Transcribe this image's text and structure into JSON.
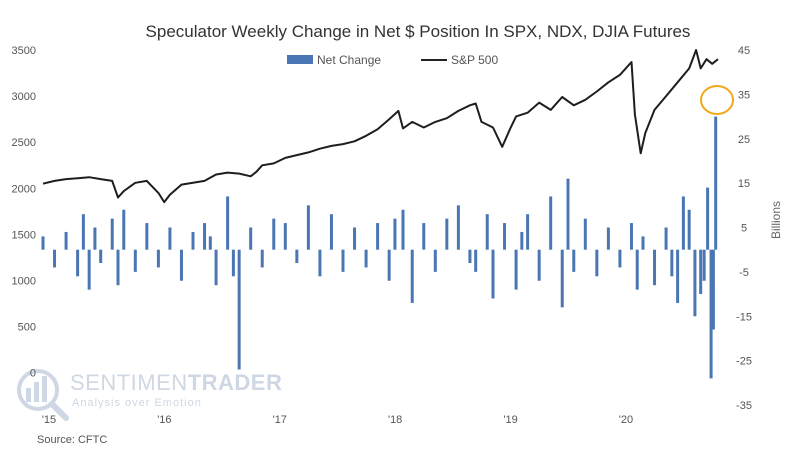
{
  "chart_data": {
    "type": "bar+line",
    "title": "Speculator Weekly Change in Net $ Position In SPX, NDX, DJIA Futures",
    "source": "Source: CFTC",
    "watermark": {
      "name_part1": "SENTIMEN",
      "name_part2": "TRADER",
      "tagline": "Analysis over Emotion"
    },
    "legend": {
      "bars": "Net Change",
      "line": "S&P 500",
      "position": "top-center"
    },
    "left_axis": {
      "series": "S&P 500",
      "range": [
        -350,
        3500
      ],
      "ticks": [
        "0",
        "500",
        "1000",
        "1500",
        "2000",
        "2500",
        "3000",
        "3500"
      ]
    },
    "right_axis": {
      "series": "Net Change",
      "label": "Billions",
      "range": [
        -35,
        45
      ],
      "ticks": [
        "45",
        "35",
        "25",
        "15",
        "5",
        "-5",
        "-15",
        "-25",
        "-35"
      ]
    },
    "x_axis": {
      "range": [
        2015.0,
        2020.85
      ],
      "ticks": [
        {
          "label": "'15",
          "year": 2015
        },
        {
          "label": "'16",
          "year": 2016
        },
        {
          "label": "'17",
          "year": 2017
        },
        {
          "label": "'18",
          "year": 2018
        },
        {
          "label": "'19",
          "year": 2019
        },
        {
          "label": "'20",
          "year": 2020
        }
      ]
    },
    "sp500": {
      "x": [
        2015.0,
        2015.1,
        2015.2,
        2015.3,
        2015.4,
        2015.5,
        2015.6,
        2015.65,
        2015.7,
        2015.8,
        2015.9,
        2016.0,
        2016.05,
        2016.1,
        2016.2,
        2016.3,
        2016.4,
        2016.5,
        2016.6,
        2016.7,
        2016.8,
        2016.85,
        2016.9,
        2017.0,
        2017.1,
        2017.2,
        2017.3,
        2017.4,
        2017.5,
        2017.6,
        2017.7,
        2017.8,
        2017.9,
        2018.0,
        2018.08,
        2018.12,
        2018.2,
        2018.3,
        2018.4,
        2018.5,
        2018.6,
        2018.7,
        2018.75,
        2018.8,
        2018.9,
        2018.98,
        2019.05,
        2019.1,
        2019.2,
        2019.3,
        2019.4,
        2019.5,
        2019.6,
        2019.7,
        2019.8,
        2019.9,
        2020.0,
        2020.1,
        2020.13,
        2020.18,
        2020.22,
        2020.3,
        2020.4,
        2020.5,
        2020.6,
        2020.66,
        2020.7,
        2020.75,
        2020.8,
        2020.85
      ],
      "y": [
        2050,
        2080,
        2100,
        2110,
        2120,
        2100,
        2080,
        1900,
        1970,
        2060,
        2080,
        1950,
        1850,
        1930,
        2040,
        2060,
        2080,
        2150,
        2170,
        2160,
        2130,
        2180,
        2250,
        2270,
        2330,
        2360,
        2390,
        2430,
        2460,
        2480,
        2510,
        2570,
        2640,
        2750,
        2840,
        2650,
        2720,
        2660,
        2720,
        2760,
        2840,
        2900,
        2920,
        2720,
        2660,
        2450,
        2650,
        2780,
        2820,
        2930,
        2850,
        2990,
        2900,
        2960,
        3050,
        3150,
        3230,
        3370,
        2800,
        2380,
        2600,
        2850,
        3000,
        3150,
        3300,
        3500,
        3300,
        3400,
        3350,
        3400
      ]
    },
    "net_change": {
      "x": [
        2015.0,
        2015.1,
        2015.2,
        2015.3,
        2015.35,
        2015.4,
        2015.45,
        2015.5,
        2015.6,
        2015.65,
        2015.7,
        2015.8,
        2015.9,
        2016.0,
        2016.1,
        2016.2,
        2016.3,
        2016.4,
        2016.45,
        2016.5,
        2016.6,
        2016.65,
        2016.7,
        2016.8,
        2016.9,
        2017.0,
        2017.1,
        2017.2,
        2017.3,
        2017.4,
        2017.5,
        2017.6,
        2017.7,
        2017.8,
        2017.9,
        2018.0,
        2018.05,
        2018.12,
        2018.2,
        2018.3,
        2018.4,
        2018.5,
        2018.6,
        2018.7,
        2018.75,
        2018.85,
        2018.9,
        2019.0,
        2019.1,
        2019.15,
        2019.2,
        2019.3,
        2019.4,
        2019.5,
        2019.55,
        2019.6,
        2019.7,
        2019.8,
        2019.9,
        2020.0,
        2020.1,
        2020.15,
        2020.2,
        2020.3,
        2020.4,
        2020.45,
        2020.5,
        2020.55,
        2020.6,
        2020.65,
        2020.7,
        2020.73,
        2020.76,
        2020.79,
        2020.81,
        2020.83
      ],
      "values": [
        3,
        -4,
        4,
        -6,
        8,
        -9,
        5,
        -3,
        7,
        -8,
        9,
        -5,
        6,
        -4,
        5,
        -7,
        4,
        6,
        3,
        -8,
        12,
        -6,
        -27,
        5,
        -4,
        7,
        6,
        -3,
        10,
        -6,
        8,
        -5,
        5,
        -4,
        6,
        -7,
        7,
        9,
        -12,
        6,
        -5,
        7,
        10,
        -3,
        -5,
        8,
        -11,
        6,
        -9,
        4,
        8,
        -7,
        12,
        -13,
        16,
        -5,
        7,
        -6,
        5,
        -4,
        6,
        -9,
        3,
        -8,
        5,
        -6,
        -12,
        12,
        9,
        -15,
        -10,
        -7,
        14,
        -29,
        -18,
        30
      ]
    }
  }
}
